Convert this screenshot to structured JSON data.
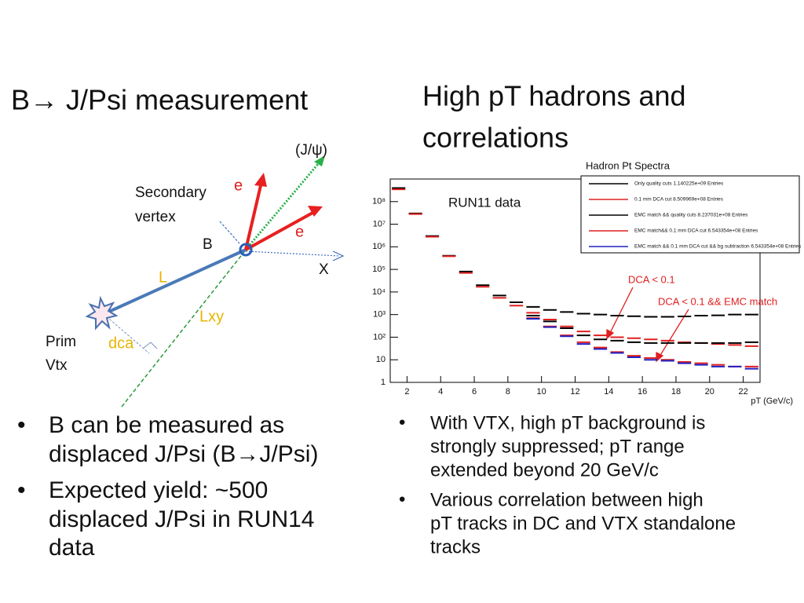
{
  "left": {
    "title": "B→ J/Psi measurement",
    "diagram": {
      "jpsi": "(J/ψ)",
      "secondary": "Secondary",
      "vertex": "vertex",
      "e1": "e",
      "e2": "e",
      "b": "B",
      "x": "X",
      "l": "L",
      "lxy": "Lxy",
      "prim": "Prim",
      "vtx": "Vtx",
      "dca": "dca"
    },
    "bullets": [
      [
        "B can be measured as",
        "displaced J/Psi (B→J/Psi)"
      ],
      [
        "Expected yield: ~500",
        "displaced J/Psi in RUN14",
        "data"
      ]
    ]
  },
  "right": {
    "title": [
      "High pT hadrons and",
      "correlations"
    ],
    "bullets": [
      [
        "With VTX, high pT background is",
        "strongly suppressed; pT range",
        "extended beyond 20 GeV/c"
      ],
      [
        "Various correlation between high",
        "pT tracks in DC and VTX standalone",
        "tracks"
      ]
    ]
  },
  "chart_data": {
    "type": "scatter",
    "title": "Hadron Pt Spectra",
    "xlabel": "pT (GeV/c)",
    "annotations": [
      "RUN11 data",
      "DCA < 0.1",
      "DCA < 0.1 && EMC match"
    ],
    "x": [
      1.5,
      2.5,
      3.5,
      4.5,
      5.5,
      6.5,
      7.5,
      8.5,
      9.5,
      10.5,
      11.5,
      12.5,
      13.5,
      14.5,
      15.5,
      16.5,
      17.5,
      18.5,
      19.5,
      20.5,
      21.5,
      22.5
    ],
    "xlim": [
      1,
      23
    ],
    "xticks": [
      2,
      4,
      6,
      8,
      10,
      12,
      14,
      16,
      18,
      20,
      22
    ],
    "ylim": [
      1,
      1000000000
    ],
    "ylog": true,
    "yticks": [
      1,
      10,
      {
        "value": 100,
        "label": "10²"
      },
      {
        "value": 1000,
        "label": "10³"
      },
      {
        "value": 10000,
        "label": "10⁴"
      },
      {
        "value": 100000,
        "label": "10⁵"
      },
      {
        "value": 1000000,
        "label": "10⁶"
      },
      {
        "value": 10000000,
        "label": "10⁷"
      },
      {
        "value": 100000000,
        "label": "10⁸"
      }
    ],
    "series": [
      {
        "name": "Only quality cuts 1.140225e+09 Entries",
        "color": "#000000",
        "values": [
          400000000,
          30000000,
          3000000,
          400000,
          80000,
          20000,
          7000,
          3500,
          2200,
          1600,
          1300,
          1100,
          1000,
          900,
          850,
          800,
          800,
          830,
          900,
          930,
          1000,
          1000
        ]
      },
      {
        "name": "0.1 mm DCA cut 8.509969e+08 Entries",
        "color": "#e02020",
        "values": [
          350000000,
          28000000,
          2800000,
          380000,
          70000,
          17000,
          5500,
          2500,
          1200,
          600,
          300,
          180,
          120,
          100,
          90,
          80,
          70,
          60,
          55,
          50,
          45,
          40
        ]
      },
      {
        "name": "EMC match && quality cuts 8.237031e+08 Entries",
        "color": "#000000",
        "values": [
          null,
          null,
          null,
          null,
          null,
          null,
          null,
          null,
          900,
          500,
          250,
          120,
          80,
          70,
          60,
          55,
          55,
          55,
          55,
          55,
          55,
          60
        ]
      },
      {
        "name": "EMC match&& 0.1 mm DCA cut 6.543354e+08 Entries",
        "color": "#e02020",
        "values": [
          null,
          null,
          null,
          null,
          null,
          null,
          null,
          null,
          700,
          300,
          120,
          60,
          35,
          22,
          15,
          12,
          10,
          8,
          7,
          6,
          5,
          5
        ]
      },
      {
        "name": "EMC match && 0.1 mm DCA cut && bg subtraction 6.543354e+08 Entries",
        "color": "#2020c0",
        "values": [
          null,
          null,
          null,
          null,
          null,
          null,
          null,
          null,
          650,
          280,
          110,
          50,
          30,
          20,
          13,
          10,
          9,
          7,
          6,
          5,
          5,
          4
        ]
      }
    ]
  }
}
